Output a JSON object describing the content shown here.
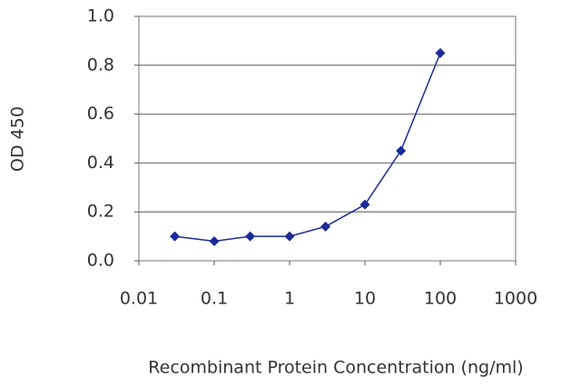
{
  "chart_data": {
    "type": "line",
    "x_label": "Recombinant Protein Concentration (ng/ml)",
    "y_label": "OD 450",
    "x": [
      0.03,
      0.1,
      0.3,
      1,
      3,
      10,
      30,
      100
    ],
    "values": [
      0.1,
      0.08,
      0.1,
      0.1,
      0.14,
      0.23,
      0.45,
      0.85
    ],
    "color": "#1c2a99",
    "xlog": true,
    "xlim": [
      0.01,
      1000
    ],
    "xticks": [
      0.01,
      0.1,
      1,
      10,
      100,
      1000
    ],
    "ylim": [
      0,
      1
    ],
    "yticks": [
      {
        "value": 0,
        "label": "0.0"
      },
      {
        "value": 0.2,
        "label": "0.2"
      },
      {
        "value": 0.4,
        "label": "0.4"
      },
      {
        "value": 0.6,
        "label": "0.6"
      },
      {
        "value": 0.8,
        "label": "0.8"
      },
      {
        "value": 1,
        "label": "1.0"
      }
    ],
    "grid": true
  }
}
